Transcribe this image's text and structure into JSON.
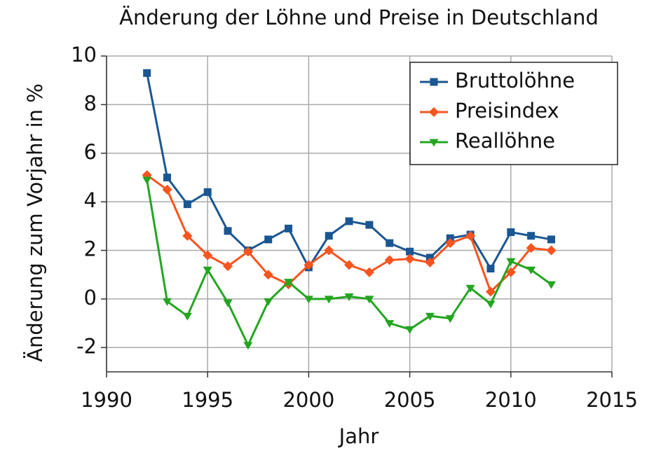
{
  "chart_data": {
    "type": "line",
    "title": "Änderung der Löhne und Preise in Deutschland",
    "x_label": "Jahr",
    "y_label": "Änderung zum Vorjahr in %",
    "x": [
      1992,
      1993,
      1994,
      1995,
      1996,
      1997,
      1998,
      1999,
      2000,
      2001,
      2002,
      2003,
      2004,
      2005,
      2006,
      2007,
      2008,
      2009,
      2010,
      2011,
      2012
    ],
    "series": [
      {
        "name": "Bruttolöhne",
        "color": "#1a5692",
        "marker": "square",
        "values": [
          9.3,
          5.0,
          3.9,
          4.4,
          2.8,
          2.0,
          2.45,
          2.9,
          1.3,
          2.6,
          3.2,
          3.05,
          2.3,
          1.95,
          1.7,
          2.5,
          2.65,
          1.25,
          2.75,
          2.6,
          2.45
        ]
      },
      {
        "name": "Preisindex",
        "color": "#f8541f",
        "marker": "diamond",
        "values": [
          5.1,
          4.5,
          2.6,
          1.8,
          1.35,
          1.95,
          1.0,
          0.6,
          1.4,
          2.0,
          1.4,
          1.1,
          1.6,
          1.65,
          1.5,
          2.3,
          2.6,
          0.3,
          1.1,
          2.1,
          2.0
        ]
      },
      {
        "name": "Reallöhne",
        "color": "#23a520",
        "marker": "triangle-down",
        "values": [
          4.9,
          -0.1,
          -0.7,
          1.2,
          -0.15,
          -1.9,
          -0.1,
          0.7,
          0.0,
          0.0,
          0.1,
          0.0,
          -1.0,
          -1.25,
          -0.7,
          -0.8,
          0.45,
          -0.2,
          1.55,
          1.2,
          0.6
        ]
      }
    ],
    "xlim": [
      1990,
      2015
    ],
    "xticks": [
      1990,
      1995,
      2000,
      2005,
      2010,
      2015
    ],
    "ylim": [
      -3,
      10
    ],
    "yticks": [
      -2,
      0,
      2,
      4,
      6,
      8,
      10
    ],
    "grid": true,
    "legend": "upper right"
  }
}
